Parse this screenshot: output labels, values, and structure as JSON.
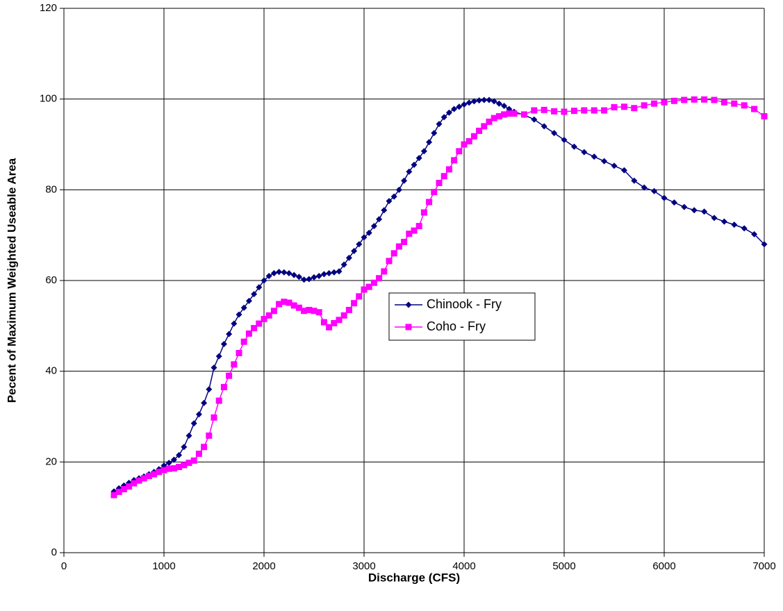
{
  "chart_data": {
    "type": "line",
    "x_label": "Discharge (CFS)",
    "y_label": "Pecent of Maximum Weighted Useable Area",
    "x": [
      500,
      550,
      600,
      650,
      700,
      750,
      800,
      850,
      900,
      950,
      1000,
      1050,
      1100,
      1150,
      1200,
      1250,
      1300,
      1350,
      1400,
      1450,
      1500,
      1550,
      1600,
      1650,
      1700,
      1750,
      1800,
      1850,
      1900,
      1950,
      2000,
      2050,
      2100,
      2150,
      2200,
      2250,
      2300,
      2350,
      2400,
      2450,
      2500,
      2550,
      2600,
      2650,
      2700,
      2750,
      2800,
      2850,
      2900,
      2950,
      3000,
      3050,
      3100,
      3150,
      3200,
      3250,
      3300,
      3350,
      3400,
      3450,
      3500,
      3550,
      3600,
      3650,
      3700,
      3750,
      3800,
      3850,
      3900,
      3950,
      4000,
      4050,
      4100,
      4150,
      4200,
      4250,
      4300,
      4350,
      4400,
      4450,
      4500,
      4600,
      4700,
      4800,
      4900,
      5000,
      5100,
      5200,
      5300,
      5400,
      5500,
      5600,
      5700,
      5800,
      5900,
      6000,
      6100,
      6200,
      6300,
      6400,
      6500,
      6600,
      6700,
      6800,
      6900,
      7000
    ],
    "series": [
      {
        "name": "Chinook - Fry",
        "color": "#000080",
        "marker": "diamond",
        "values": [
          13.5,
          14.2,
          14.8,
          15.4,
          16,
          16.4,
          16.8,
          17.3,
          17.8,
          18.4,
          19.2,
          19.8,
          20.5,
          21.5,
          23.3,
          25.8,
          28.5,
          30.5,
          33,
          36,
          40.8,
          43.3,
          46,
          48.2,
          50.5,
          52.5,
          54,
          55.5,
          57,
          58.5,
          60,
          61,
          61.6,
          61.9,
          61.8,
          61.6,
          61.2,
          60.8,
          60.2,
          60.3,
          60.7,
          61,
          61.4,
          61.6,
          61.8,
          62,
          63.5,
          65,
          66.5,
          68,
          69.5,
          70.5,
          72,
          73.5,
          75.5,
          77.5,
          78.5,
          80,
          82,
          84,
          85.5,
          87,
          88.5,
          90.5,
          92.5,
          94.5,
          96,
          97,
          97.8,
          98.3,
          98.8,
          99.2,
          99.5,
          99.7,
          99.8,
          99.8,
          99.5,
          99,
          98.5,
          97.8,
          97.2,
          96.5,
          95.5,
          94,
          92.5,
          91,
          89.5,
          88.3,
          87.3,
          86.3,
          85.3,
          84.3,
          82,
          80.5,
          79.7,
          78.2,
          77.2,
          76.2,
          75.5,
          75.2,
          73.8,
          73,
          72.3,
          71.5,
          70.2,
          68
        ]
      },
      {
        "name": "Coho - Fry",
        "color": "#ff00ff",
        "marker": "square",
        "values": [
          12.7,
          13.4,
          14,
          14.6,
          15.3,
          15.9,
          16.4,
          16.9,
          17.3,
          17.8,
          18.2,
          18.5,
          18.6,
          18.9,
          19.3,
          19.8,
          20.3,
          21.8,
          23.3,
          25.8,
          29.8,
          33.5,
          36.5,
          39,
          41.5,
          44,
          46.5,
          48.3,
          49.5,
          50.5,
          51.5,
          52.3,
          53.3,
          54.8,
          55.3,
          55.1,
          54.5,
          54,
          53.3,
          53.5,
          53.3,
          53,
          50.8,
          49.7,
          50.6,
          51.3,
          52.3,
          53.5,
          55,
          56.5,
          58,
          58.6,
          59.5,
          60.5,
          62,
          64.3,
          66,
          67.5,
          68.5,
          70.3,
          71,
          72,
          75,
          77.3,
          79.5,
          81.5,
          83,
          84.5,
          86.5,
          88.5,
          90,
          90.7,
          91.8,
          93,
          94,
          95,
          95.8,
          96.2,
          96.6,
          96.8,
          96.8,
          96.6,
          97.5,
          97.6,
          97.3,
          97.2,
          97.4,
          97.5,
          97.5,
          97.5,
          98.2,
          98.3,
          98,
          98.6,
          99,
          99.3,
          99.6,
          99.8,
          99.9,
          99.9,
          99.8,
          99.3,
          99,
          98.6,
          97.8,
          96.2
        ]
      }
    ],
    "xlim": [
      0,
      7000
    ],
    "xticks": [
      0,
      1000,
      2000,
      3000,
      4000,
      5000,
      6000,
      7000
    ],
    "ylim": [
      0,
      120
    ],
    "yticks": [
      0,
      20,
      40,
      60,
      80,
      100,
      120
    ],
    "grid": true
  }
}
